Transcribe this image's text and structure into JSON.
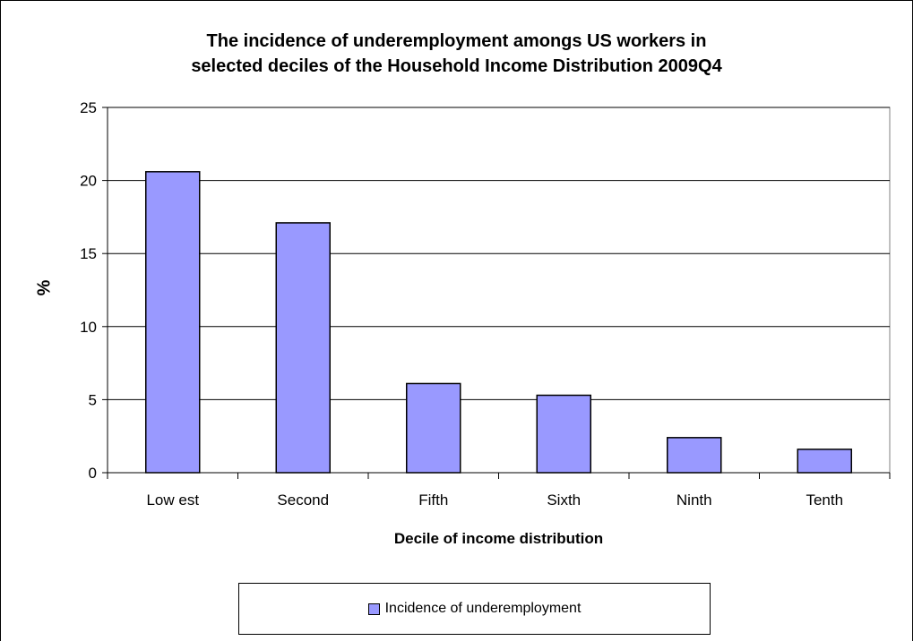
{
  "chart_data": {
    "type": "bar",
    "title_lines": [
      "The incidence of underemployment amongs US workers in",
      "selected deciles of the Household Income Distribution 2009Q4"
    ],
    "xlabel": "Decile of income distribution",
    "ylabel": "%",
    "categories": [
      "Low est",
      "Second",
      "Fifth",
      "Sixth",
      "Ninth",
      "Tenth"
    ],
    "series": [
      {
        "name": "Incidence of underemployment",
        "values": [
          20.6,
          17.1,
          6.1,
          5.3,
          2.4,
          1.6
        ]
      }
    ],
    "ylim": [
      0,
      25
    ],
    "yticks": [
      0,
      5,
      10,
      15,
      20,
      25
    ],
    "grid": true,
    "legend_position": "bottom",
    "colors": {
      "bar": "#9999ff",
      "border": "#000000"
    }
  }
}
